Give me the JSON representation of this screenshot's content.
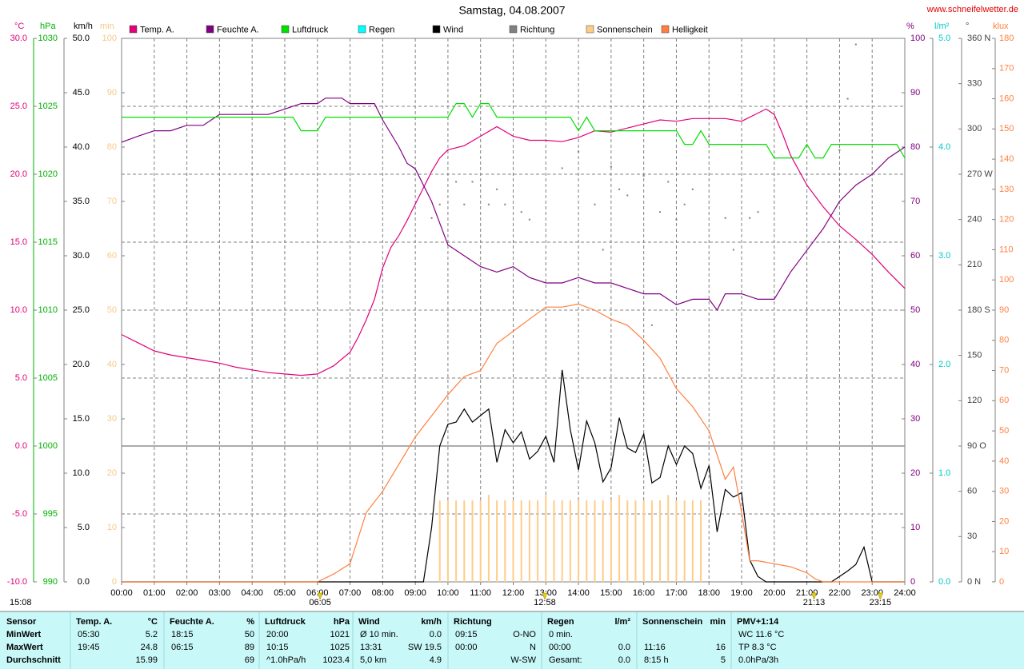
{
  "chart_data": {
    "type": "line",
    "title": "Samstag, 04.08.2007",
    "source": "www.schneifelwetter.de",
    "xlim": [
      0,
      24
    ],
    "xticks": [
      {
        "value": 0,
        "label": "00:00"
      },
      {
        "value": 1,
        "label": "01:00"
      },
      {
        "value": 2,
        "label": "02:00"
      },
      {
        "value": 3,
        "label": "03:00"
      },
      {
        "value": 4,
        "label": "04:00"
      },
      {
        "value": 5,
        "label": "05:00"
      },
      {
        "value": 6,
        "label": "06:00"
      },
      {
        "value": 7,
        "label": "07:00"
      },
      {
        "value": 8,
        "label": "08:00"
      },
      {
        "value": 9,
        "label": "09:00"
      },
      {
        "value": 10,
        "label": "10:00"
      },
      {
        "value": 11,
        "label": "11:00"
      },
      {
        "value": 12,
        "label": "12:00"
      },
      {
        "value": 13,
        "label": "13:00"
      },
      {
        "value": 14,
        "label": "14:00"
      },
      {
        "value": 15,
        "label": "15:00"
      },
      {
        "value": 16,
        "label": "16:00"
      },
      {
        "value": 17,
        "label": "17:00"
      },
      {
        "value": 18,
        "label": "18:00"
      },
      {
        "value": 19,
        "label": "19:00"
      },
      {
        "value": 20,
        "label": "20:00"
      },
      {
        "value": 21,
        "label": "21:00"
      },
      {
        "value": 22,
        "label": "22:00"
      },
      {
        "value": 23,
        "label": "23:00"
      },
      {
        "value": 24,
        "label": "24:00"
      }
    ],
    "grid": true,
    "axes": {
      "y": {
        "label": "°C",
        "color": "#e0007a",
        "lim": [
          -10,
          30
        ],
        "ticks": [
          {
            "value": -10,
            "label": "-10.0"
          },
          {
            "value": -5,
            "label": "-5.0"
          },
          {
            "value": 0,
            "label": "0.0"
          },
          {
            "value": 5,
            "label": "5.0"
          },
          {
            "value": 10,
            "label": "10.0"
          },
          {
            "value": 15,
            "label": "15.0"
          },
          {
            "value": 20,
            "label": "20.0"
          },
          {
            "value": 25,
            "label": "25.0"
          },
          {
            "value": 30,
            "label": "30.0"
          }
        ]
      },
      "y2": {
        "label": "hPa",
        "color": "#00b000",
        "lim": [
          990,
          1030
        ],
        "ticks": [
          990,
          995,
          1000,
          1005,
          1010,
          1015,
          1020,
          1025,
          1030
        ]
      },
      "y3": {
        "label": "km/h",
        "color": "#000000",
        "lim": [
          0,
          50
        ],
        "ticks": [
          {
            "value": 0,
            "label": "0.0"
          },
          {
            "value": 5,
            "label": "5.0"
          },
          {
            "value": 10,
            "label": "10.0"
          },
          {
            "value": 15,
            "label": "15.0"
          },
          {
            "value": 20,
            "label": "20.0"
          },
          {
            "value": 25,
            "label": "25.0"
          },
          {
            "value": 30,
            "label": "30.0"
          },
          {
            "value": 35,
            "label": "35.0"
          },
          {
            "value": 40,
            "label": "40.0"
          },
          {
            "value": 45,
            "label": "45.0"
          },
          {
            "value": 50,
            "label": "50.0"
          }
        ]
      },
      "y4": {
        "label": "min",
        "color": "#f5c987",
        "lim": [
          0,
          100
        ],
        "ticks": [
          0,
          10,
          20,
          30,
          40,
          50,
          60,
          70,
          80,
          90,
          100
        ]
      },
      "y5": {
        "label": "%",
        "color": "#800080",
        "lim": [
          0,
          100
        ],
        "ticks": [
          0,
          10,
          20,
          30,
          40,
          50,
          60,
          70,
          80,
          90,
          100
        ]
      },
      "y6": {
        "label": "l/m²",
        "color": "#00c8c8",
        "lim": [
          0,
          5
        ],
        "ticks": [
          {
            "value": 0,
            "label": "0.0"
          },
          {
            "value": 1,
            "label": "1.0"
          },
          {
            "value": 2,
            "label": "2.0"
          },
          {
            "value": 3,
            "label": "3.0"
          },
          {
            "value": 4,
            "label": "4.0"
          },
          {
            "value": 5,
            "label": "5.0"
          }
        ]
      },
      "y7": {
        "label": "°",
        "color": "#404040",
        "lim": [
          0,
          360
        ],
        "ticks": [
          {
            "value": 0,
            "label": "0 N"
          },
          30,
          60,
          {
            "value": 90,
            "label": "90 O"
          },
          120,
          150,
          {
            "value": 180,
            "label": "180 S"
          },
          210,
          240,
          {
            "value": 270,
            "label": "270 W"
          },
          300,
          330,
          {
            "value": 360,
            "label": "360 N"
          }
        ]
      },
      "y8": {
        "label": "klux",
        "color": "#ff7f40",
        "lim": [
          0,
          180
        ],
        "ticks": [
          0,
          10,
          20,
          30,
          40,
          50,
          60,
          70,
          80,
          90,
          100,
          110,
          120,
          130,
          140,
          150,
          160,
          170,
          180
        ]
      }
    },
    "series": [
      {
        "name": "Temp. A.",
        "color": "#e0007a",
        "type": "line",
        "axis": "y",
        "x": [
          0,
          0.5,
          1,
          1.5,
          2,
          2.5,
          3,
          3.5,
          4,
          4.5,
          5,
          5.5,
          6,
          6.5,
          7,
          7.25,
          7.5,
          7.75,
          8,
          8.25,
          8.5,
          8.75,
          9,
          9.25,
          9.5,
          9.75,
          10,
          10.5,
          11,
          11.5,
          12,
          12.5,
          13,
          13.5,
          14,
          14.5,
          15,
          15.5,
          16,
          16.5,
          17,
          17.5,
          18,
          18.5,
          19,
          19.5,
          19.75,
          20,
          20.25,
          20.5,
          21,
          21.5,
          22,
          22.5,
          23,
          23.5,
          24
        ],
        "values": [
          8.2,
          7.6,
          7.0,
          6.7,
          6.5,
          6.3,
          6.1,
          5.8,
          5.6,
          5.4,
          5.3,
          5.2,
          5.3,
          5.9,
          6.9,
          8.0,
          9.3,
          10.8,
          13.1,
          14.6,
          15.5,
          16.6,
          17.8,
          19.0,
          20.2,
          21.2,
          21.8,
          22.1,
          22.8,
          23.5,
          22.8,
          22.5,
          22.5,
          22.4,
          22.7,
          23.2,
          23.1,
          23.4,
          23.7,
          24.0,
          23.9,
          24.1,
          24.1,
          24.1,
          23.9,
          24.5,
          24.8,
          24.4,
          23.0,
          21.4,
          19.2,
          17.6,
          16.2,
          15.2,
          14.1,
          12.8,
          11.6
        ]
      },
      {
        "name": "Feuchte A.",
        "color": "#800080",
        "type": "line",
        "axis": "y5",
        "x": [
          0,
          0.5,
          1,
          1.5,
          2,
          2.5,
          3,
          3.5,
          4,
          4.5,
          5,
          5.5,
          6,
          6.25,
          6.75,
          7,
          7.75,
          8,
          8.5,
          8.75,
          9,
          9.25,
          9.5,
          9.75,
          10,
          10.5,
          11,
          11.5,
          12,
          12.5,
          13,
          13.5,
          14,
          14.5,
          15,
          15.5,
          16,
          16.5,
          17,
          17.5,
          18,
          18.25,
          18.5,
          19,
          19.5,
          20,
          20.5,
          21,
          21.5,
          22,
          22.5,
          23,
          23.5,
          24
        ],
        "values": [
          80.9,
          82,
          83,
          83,
          84,
          84,
          86,
          86,
          86,
          86,
          87,
          88,
          88,
          89,
          89,
          88,
          88,
          85,
          80,
          77,
          76,
          73,
          70,
          66,
          62,
          60,
          58,
          57,
          58,
          56,
          55,
          55,
          56,
          55,
          55,
          54,
          53,
          53,
          51,
          52,
          52,
          50,
          53,
          53,
          52,
          52,
          57,
          61,
          65,
          70,
          73,
          75,
          78,
          80
        ]
      },
      {
        "name": "Luftdruck",
        "color": "#00e000",
        "type": "line",
        "axis": "y2",
        "x": [
          0,
          5.25,
          5.5,
          6,
          6.25,
          10,
          10.25,
          10.5,
          10.75,
          11,
          11.25,
          11.5,
          13.75,
          14,
          14.25,
          14.5,
          17,
          17.25,
          17.5,
          17.75,
          18,
          19.75,
          20,
          20.75,
          21,
          21.25,
          21.5,
          21.75,
          23.75,
          24
        ],
        "values": [
          1024.2,
          1024.2,
          1023.2,
          1023.2,
          1024.2,
          1024.2,
          1025.2,
          1025.2,
          1024.2,
          1025.2,
          1025.2,
          1024.2,
          1024.2,
          1023.2,
          1024.2,
          1023.2,
          1023.2,
          1022.2,
          1022.2,
          1023.2,
          1022.2,
          1022.2,
          1021.2,
          1021.2,
          1022.2,
          1021.2,
          1021.2,
          1022.2,
          1022.2,
          1021.2
        ]
      },
      {
        "name": "Regen",
        "color": "#00ffff",
        "type": "line",
        "axis": "y6",
        "x": [],
        "values": []
      },
      {
        "name": "Wind",
        "color": "#000000",
        "type": "line",
        "axis": "y3",
        "x": [
          0,
          9.25,
          9.5,
          9.75,
          10,
          10.25,
          10.5,
          10.75,
          11,
          11.25,
          11.5,
          11.75,
          12,
          12.25,
          12.5,
          12.75,
          13,
          13.25,
          13.5,
          13.75,
          14,
          14.25,
          14.5,
          14.75,
          15,
          15.25,
          15.5,
          15.75,
          16,
          16.25,
          16.5,
          16.75,
          17,
          17.25,
          17.5,
          17.75,
          18,
          18.25,
          18.5,
          18.75,
          19,
          19.25,
          19.5,
          19.75,
          21.75,
          22,
          22.25,
          22.5,
          22.75,
          23,
          24
        ],
        "values": [
          0,
          0,
          5,
          12.5,
          14.5,
          14.7,
          15.9,
          14.7,
          15.3,
          15.9,
          11,
          14,
          12.8,
          13.8,
          11.3,
          12,
          13.4,
          11,
          19.5,
          14,
          10.3,
          14.8,
          12.8,
          9.2,
          10.5,
          15.1,
          12.3,
          11.9,
          13.6,
          9.1,
          9.6,
          12.5,
          10.8,
          12.5,
          11.8,
          8.6,
          10.7,
          4.6,
          8.5,
          7.8,
          8.2,
          2,
          0.5,
          0,
          0,
          0.5,
          1,
          1.6,
          3.2,
          0,
          0
        ]
      },
      {
        "name": "Richtung",
        "color": "#808080",
        "type": "scatter",
        "axis": "y7",
        "x": [
          9.5,
          9.75,
          10.25,
          10.5,
          10.75,
          11.25,
          11.5,
          11.75,
          12.25,
          12.5,
          13.5,
          14,
          14.5,
          14.75,
          15,
          15.25,
          15.5,
          16,
          16.25,
          16.5,
          16.75,
          17,
          17.25,
          17.5,
          18,
          18.5,
          18.75,
          19.25,
          19.5,
          22,
          22.25,
          22.5
        ],
        "values": [
          241,
          250,
          265,
          250,
          265,
          250,
          260,
          250,
          245,
          240,
          274,
          285,
          250,
          220,
          275,
          260,
          256,
          269,
          170,
          245,
          265,
          240,
          250,
          260,
          295,
          241,
          220,
          241,
          245,
          286,
          320,
          356
        ]
      },
      {
        "name": "Sonnenschein",
        "color": "#ffcc88",
        "type": "bar",
        "axis": "y4",
        "x": [
          9.75,
          10,
          10.25,
          10.5,
          10.75,
          11,
          11.25,
          11.5,
          11.75,
          12,
          12.25,
          12.5,
          12.75,
          13,
          13.25,
          13.5,
          13.75,
          14,
          14.25,
          14.5,
          14.75,
          15,
          15.25,
          15.5,
          15.75,
          16,
          16.25,
          16.5,
          16.75,
          17,
          17.25,
          17.5,
          17.75
        ],
        "values": [
          15,
          15,
          15,
          15,
          15,
          15,
          16,
          15,
          15,
          15,
          15,
          15,
          15,
          16,
          15,
          15,
          15,
          15,
          15,
          15,
          15,
          15,
          16,
          15,
          15,
          15,
          15,
          15,
          16,
          15,
          15,
          15,
          15
        ]
      },
      {
        "name": "Helligkeit",
        "color": "#ff7f40",
        "type": "line",
        "axis": "y8",
        "x": [
          0,
          6,
          6.5,
          7,
          7.5,
          8,
          8.5,
          9,
          9.5,
          10,
          10.5,
          11,
          11.5,
          12,
          12.5,
          13,
          13.5,
          14,
          14.5,
          15,
          15.5,
          16,
          16.5,
          17,
          17.5,
          18,
          18.5,
          18.75,
          19,
          19.25,
          19.5,
          20,
          20.5,
          21,
          21.25,
          21.5,
          24
        ],
        "values": [
          0,
          0,
          2.6,
          6,
          23,
          30,
          39,
          48,
          55,
          62,
          68,
          70,
          79,
          83,
          87,
          91,
          91,
          92,
          90,
          87,
          85,
          80,
          74,
          64,
          58,
          50,
          34,
          38,
          23,
          7,
          7,
          6,
          5,
          3,
          1,
          0,
          0
        ]
      }
    ],
    "events": [
      {
        "value": 6.083,
        "label": "06:05"
      },
      {
        "value": 12.967,
        "label": "12:58"
      },
      {
        "value": 21.217,
        "label": "21:13"
      },
      {
        "value": 23.25,
        "label": "23:15"
      }
    ],
    "day_length": "15:08"
  },
  "stats": {
    "sensor": {
      "header": "Sensor",
      "rows": [
        "MinWert",
        "MaxWert",
        "Durchschnitt"
      ]
    },
    "groups": [
      {
        "title": "Temp. A.",
        "unit": "°C",
        "rows": [
          {
            "left": "05:30",
            "right": "5.2"
          },
          {
            "left": "19:45",
            "right": "24.8"
          },
          {
            "right": "15.99"
          }
        ]
      },
      {
        "title": "Feuchte A.",
        "unit": "%",
        "rows": [
          {
            "left": "18:15",
            "right": "50"
          },
          {
            "left": "06:15",
            "right": "89"
          },
          {
            "right": "69"
          }
        ]
      },
      {
        "title": "Luftdruck",
        "unit": "hPa",
        "rows": [
          {
            "left": "20:00",
            "right": "1021"
          },
          {
            "left": "10:15",
            "right": "1025"
          },
          {
            "left": "^1.0hPa/h",
            "right": "1023.4"
          }
        ]
      },
      {
        "title": "Wind",
        "unit": "km/h",
        "rows": [
          {
            "left": "Ø 10 min.",
            "right": "0.0"
          },
          {
            "left": "13:31",
            "right": "SW 19.5"
          },
          {
            "left": "5,0 km",
            "right": "4.9"
          }
        ]
      },
      {
        "title": "Richtung",
        "rows": [
          {
            "left": "09:15",
            "right": "O-NO"
          },
          {
            "left": "00:00",
            "right": "N"
          },
          {
            "right": "W-SW"
          }
        ]
      },
      {
        "title": "Regen",
        "unit": "l/m²",
        "rows": [
          {
            "left": "0 min."
          },
          {
            "left": "00:00",
            "right": "0.0"
          },
          {
            "left": "Gesamt:",
            "right": "0.0"
          }
        ]
      },
      {
        "title": "Sonnenschein",
        "unit": "min",
        "rows": [
          {},
          {
            "left": "11:16",
            "right": "16"
          },
          {
            "left": "8:15 h",
            "right": "5"
          }
        ]
      },
      {
        "title": "PMV+1:14",
        "rows": [
          {
            "left": "WC 11.6 °C"
          },
          {
            "left": "TP 8.3 °C"
          },
          {
            "left": "0.0hPa/3h"
          }
        ]
      }
    ]
  }
}
